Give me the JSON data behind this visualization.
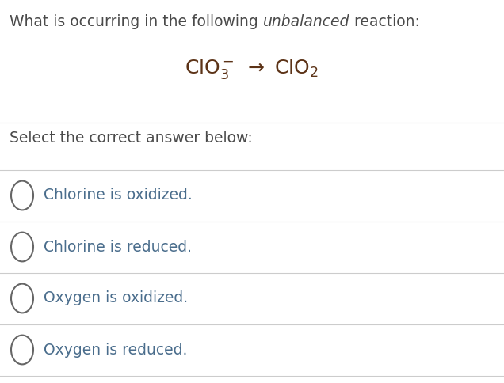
{
  "background_color": "#ffffff",
  "text_color": "#4a4a4a",
  "option_text_color": "#4a6d8c",
  "title_normal1": "What is occurring in the following ",
  "title_italic": "unbalanced",
  "title_normal2": " reaction:",
  "reaction_mathtext": "$\\mathrm{ClO_3^-\\ \\rightarrow\\ ClO_2}$",
  "prompt": "Select the correct answer below:",
  "options": [
    "Chlorine is oxidized.",
    "Chlorine is reduced.",
    "Oxygen is oxidized.",
    "Oxygen is reduced."
  ],
  "figsize": [
    6.36,
    4.84
  ],
  "dpi": 100,
  "title_fontsize": 13.5,
  "reaction_fontsize": 18,
  "prompt_fontsize": 13.5,
  "option_fontsize": 13.5,
  "line_color": "#cccccc",
  "circle_edge_color": "#666666",
  "reaction_text_color": "#5c3317"
}
